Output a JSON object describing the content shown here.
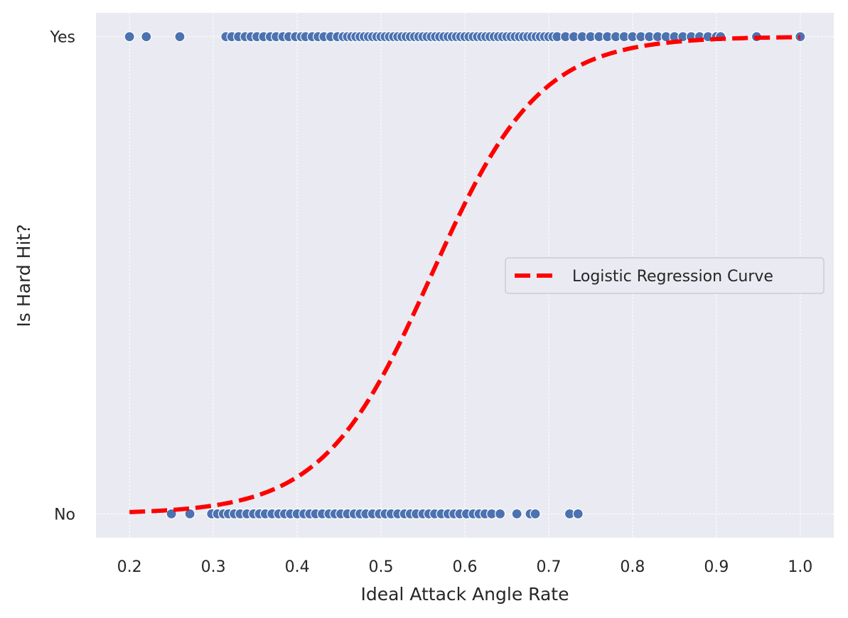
{
  "chart_data": {
    "type": "scatter",
    "xlabel": "Ideal Attack Angle Rate",
    "ylabel": "Is Hard Hit?",
    "xlim": [
      0.16,
      1.04
    ],
    "ylim": [
      -0.05,
      1.05
    ],
    "x_ticks": [
      0.2,
      0.3,
      0.4,
      0.5,
      0.6,
      0.7,
      0.8,
      0.9,
      1.0
    ],
    "x_tick_labels": [
      "0.2",
      "0.3",
      "0.4",
      "0.5",
      "0.6",
      "0.7",
      "0.8",
      "0.9",
      "1.0"
    ],
    "y_ticks": [
      0,
      1
    ],
    "y_tick_labels": [
      "No",
      "Yes"
    ],
    "grid": true,
    "legend": {
      "position": "right",
      "entries": [
        "Logistic Regression Curve"
      ]
    },
    "colors": {
      "background": "#eaeaf2",
      "points": "#4c72b0",
      "curve": "#ff0000",
      "grid": "#ffffff"
    },
    "series": [
      {
        "type": "scatter",
        "y_value": 1,
        "x": [
          0.2,
          0.22,
          0.26,
          0.315,
          0.322,
          0.33,
          0.338,
          0.345,
          0.352,
          0.36,
          0.368,
          0.375,
          0.383,
          0.39,
          0.398,
          0.405,
          0.41,
          0.418,
          0.425,
          0.432,
          0.44,
          0.448,
          0.455,
          0.46,
          0.465,
          0.47,
          0.475,
          0.48,
          0.485,
          0.49,
          0.495,
          0.5,
          0.505,
          0.51,
          0.515,
          0.52,
          0.525,
          0.53,
          0.535,
          0.54,
          0.545,
          0.55,
          0.555,
          0.56,
          0.565,
          0.57,
          0.575,
          0.58,
          0.585,
          0.59,
          0.595,
          0.6,
          0.605,
          0.61,
          0.615,
          0.62,
          0.625,
          0.63,
          0.635,
          0.64,
          0.645,
          0.65,
          0.655,
          0.66,
          0.665,
          0.67,
          0.675,
          0.68,
          0.685,
          0.69,
          0.695,
          0.7,
          0.705,
          0.71,
          0.72,
          0.73,
          0.74,
          0.75,
          0.76,
          0.77,
          0.78,
          0.79,
          0.8,
          0.81,
          0.82,
          0.83,
          0.84,
          0.85,
          0.86,
          0.87,
          0.88,
          0.89,
          0.9,
          0.905,
          0.948,
          1.0
        ]
      },
      {
        "type": "scatter",
        "y_value": 0,
        "x": [
          0.25,
          0.272,
          0.298,
          0.305,
          0.312,
          0.318,
          0.325,
          0.332,
          0.34,
          0.348,
          0.355,
          0.362,
          0.37,
          0.378,
          0.385,
          0.392,
          0.4,
          0.408,
          0.415,
          0.422,
          0.43,
          0.438,
          0.445,
          0.452,
          0.46,
          0.468,
          0.475,
          0.482,
          0.49,
          0.498,
          0.505,
          0.512,
          0.52,
          0.528,
          0.535,
          0.542,
          0.55,
          0.557,
          0.564,
          0.572,
          0.58,
          0.587,
          0.594,
          0.602,
          0.61,
          0.617,
          0.624,
          0.632,
          0.642,
          0.662,
          0.678,
          0.684,
          0.725,
          0.735
        ]
      },
      {
        "name": "Logistic Regression Curve",
        "type": "line",
        "style": "dashed",
        "logistic": {
          "midpoint": 0.56,
          "slope": 15.5
        },
        "x_range": [
          0.2,
          1.0
        ]
      }
    ]
  }
}
